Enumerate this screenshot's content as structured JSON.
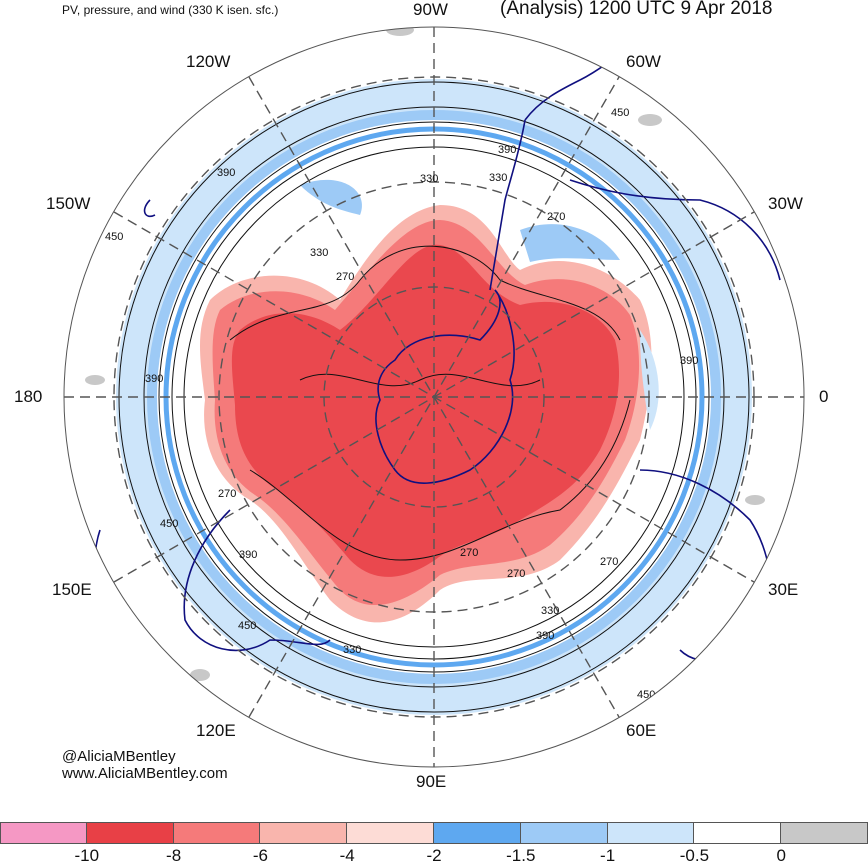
{
  "header": {
    "left_title": "PV, pressure, and wind (330 K isen. sfc.)",
    "right_title": "(Analysis) 1200 UTC 9 Apr 2018"
  },
  "credits": {
    "handle": "@AliciaMBentley",
    "website": "www.AliciaMBentley.com"
  },
  "longitude_labels": {
    "n90w": "90W",
    "n60w": "60W",
    "n120w": "120W",
    "n150w": "150W",
    "n30w": "30W",
    "n180": "180",
    "n0": "0",
    "n150e": "150E",
    "n30e": "30E",
    "n120e": "120E",
    "n60e": "60E",
    "n90e": "90E"
  },
  "contour_labels": [
    "390",
    "450",
    "390",
    "330",
    "270",
    "330",
    "450",
    "270",
    "390",
    "390",
    "390",
    "330",
    "270",
    "270",
    "450",
    "270",
    "450",
    "330",
    "330",
    "390",
    "270",
    "450"
  ],
  "colorbar": {
    "colors": [
      "#f598c4",
      "#e84046",
      "#f57a7a",
      "#f9b5ad",
      "#fddcd6",
      "#5ea8f0",
      "#9dcaf6",
      "#cde5fa",
      "#ffffff",
      "#c8c8c8"
    ],
    "ticks": [
      "-10",
      "-8",
      "-6",
      "-4",
      "-2",
      "-1.5",
      "-1",
      "-0.5",
      "0"
    ]
  },
  "map_colors": {
    "strong_negative": "#e84046",
    "negative": "#f57a7a",
    "weak_negative": "#f9b5ad",
    "blue": "#5ea8f0",
    "light_blue": "#9dcaf6",
    "pale_blue": "#cde5fa",
    "coast": "#101080"
  }
}
